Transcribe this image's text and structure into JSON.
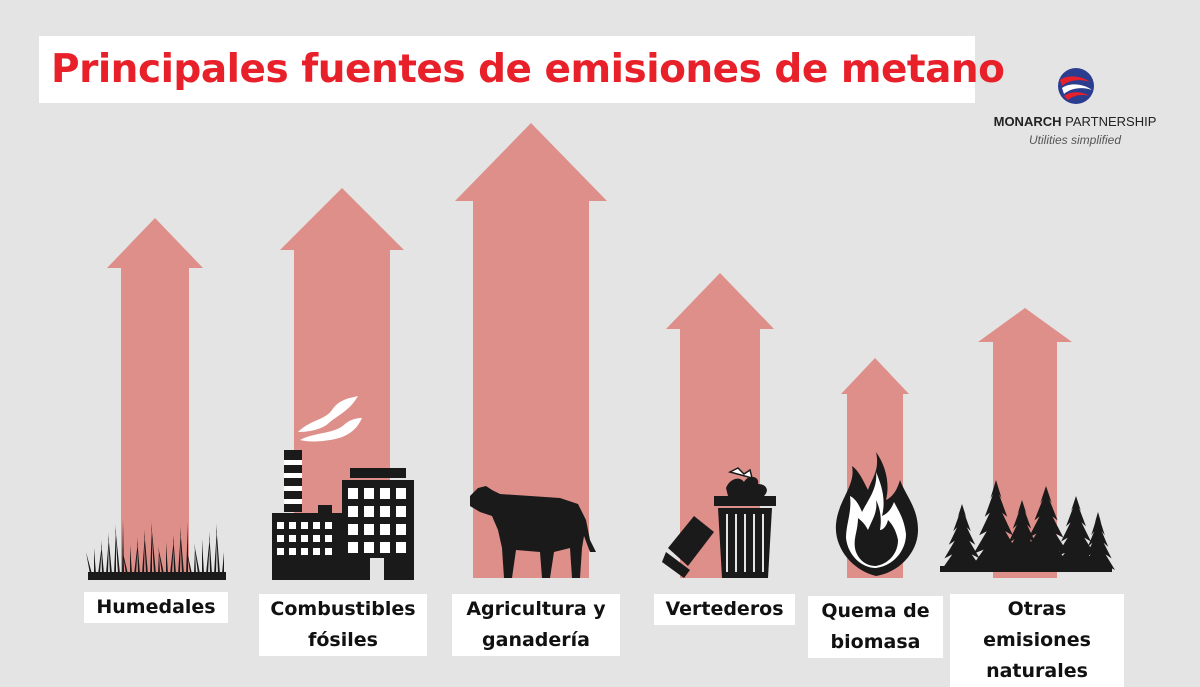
{
  "title": "Principales fuentes de emisiones de metano",
  "logo": {
    "brand_bold": "MONARCH",
    "brand_rest": " PARTNERSHIP",
    "tagline": "Utilities simplified",
    "colors": {
      "red": "#e8202a",
      "blue": "#2b3d8f"
    }
  },
  "colors": {
    "arrow": "#de8f8a",
    "title": "#e8202a",
    "background": "#e4e4e4",
    "icon": "#1a1a1a"
  },
  "chart_data": {
    "type": "bar",
    "title": "Principales fuentes de emisiones de metano",
    "categories": [
      [
        "Humedales"
      ],
      [
        "Combustibles",
        "fósiles"
      ],
      [
        "Agricultura y",
        "ganadería"
      ],
      [
        "Vertederos"
      ],
      [
        "Quema de",
        "biomasa"
      ],
      [
        "Otras emisiones",
        "naturales"
      ]
    ],
    "values": [
      360,
      390,
      455,
      305,
      220,
      270
    ],
    "icons": [
      "grass-icon",
      "factory-icon",
      "cow-icon",
      "trash-can-icon",
      "fire-icon",
      "forest-icon"
    ],
    "xlabel": "",
    "ylabel": "",
    "ylim": [
      0,
      500
    ],
    "grid": false,
    "legend": "none"
  }
}
